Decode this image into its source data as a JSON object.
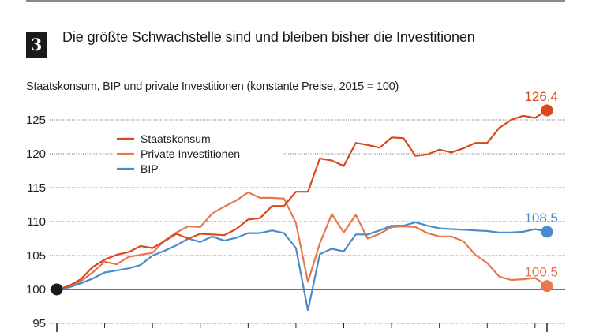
{
  "header": {
    "badge_number": "3",
    "headline": "Die größte Schwachstelle sind und bleiben bisher die Investitionen"
  },
  "chart_data": {
    "type": "line",
    "title": "Die größte Schwachstelle sind und bleiben bisher die Investitionen",
    "subtitle": "Staatskonsum, BIP und private Investitionen (konstante Preise, 2015 = 100)",
    "xlabel": "",
    "ylabel": "",
    "ylim": [
      95,
      127
    ],
    "yticks": [
      95,
      100,
      105,
      110,
      115,
      120,
      125
    ],
    "ytick_labels": [
      "95",
      "100",
      "105",
      "110",
      "115",
      "120",
      "125"
    ],
    "baseline": 100,
    "grid": true,
    "x_periods": 42,
    "x_ticks_every": 4,
    "legend_position": "top-left",
    "start_value_label": "100",
    "series": [
      {
        "name": "Staatskonsum",
        "color": "#d9481e",
        "end_label": "126,4",
        "values": [
          100,
          100.5,
          101.5,
          103.3,
          104.4,
          105.1,
          105.5,
          106.4,
          106.1,
          107.1,
          108.2,
          107.5,
          108.2,
          108.1,
          108.0,
          108.9,
          110.3,
          110.5,
          112.3,
          112.3,
          114.4,
          114.4,
          119.3,
          119.0,
          118.2,
          121.6,
          121.3,
          120.9,
          122.4,
          122.3,
          119.7,
          119.9,
          120.6,
          120.2,
          120.8,
          121.6,
          121.6,
          123.8,
          125.0,
          125.6,
          125.3,
          126.4
        ]
      },
      {
        "name": "Private Investitionen",
        "color": "#e8774e",
        "end_label": "100,5",
        "values": [
          100,
          100.4,
          101.2,
          102.5,
          104.1,
          103.7,
          104.8,
          105.1,
          105.4,
          107.2,
          108.4,
          109.3,
          109.2,
          111.2,
          112.2,
          113.1,
          114.3,
          113.5,
          113.5,
          113.4,
          109.8,
          101.1,
          106.8,
          111.1,
          108.4,
          111.0,
          107.5,
          108.2,
          109.2,
          109.3,
          109.2,
          108.3,
          107.8,
          107.8,
          107.1,
          105.1,
          103.9,
          101.9,
          101.4,
          101.5,
          101.7,
          100.5
        ]
      },
      {
        "name": "BIP",
        "color": "#4a8bcb",
        "end_label": "108,5",
        "values": [
          100,
          100.3,
          100.9,
          101.6,
          102.5,
          102.8,
          103.1,
          103.6,
          105.0,
          105.7,
          106.5,
          107.5,
          107.0,
          107.8,
          107.2,
          107.6,
          108.3,
          108.3,
          108.7,
          108.3,
          106.1,
          96.9,
          105.2,
          106.0,
          105.6,
          108.1,
          108.1,
          108.7,
          109.4,
          109.4,
          109.9,
          109.4,
          109.0,
          108.9,
          108.8,
          108.7,
          108.6,
          108.4,
          108.4,
          108.5,
          108.9,
          108.5
        ]
      }
    ]
  }
}
